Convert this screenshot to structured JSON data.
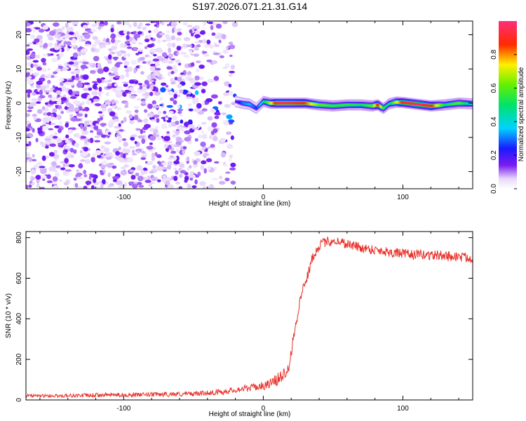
{
  "title": "S197.2026.071.21.31.G14",
  "colors": {
    "snr_line": "#e8312a",
    "scatter_low": "#e6d9fb",
    "scatter_mid": "#b58cf2",
    "scatter_high": "#6a11ea",
    "axis": "#000000"
  },
  "chart_data": [
    {
      "type": "heatmap",
      "xlabel": "Height of straight line (km)",
      "ylabel": "Frequency (Hz)",
      "xlim": [
        -170,
        150
      ],
      "ylim": [
        -25,
        24
      ],
      "xticks": [
        -100,
        0,
        100
      ],
      "xtick_labels": [
        "-100",
        "0",
        "100"
      ],
      "yticks": [
        -20,
        -10,
        0,
        10,
        20
      ],
      "ytick_labels": [
        "-20",
        "-10",
        "0",
        "10",
        "20"
      ],
      "colorbar": {
        "label": "Normalized spectral amplitude",
        "range": [
          0,
          1
        ],
        "ticks": [
          0.0,
          0.2,
          0.4,
          0.6,
          0.8
        ],
        "tick_labels": [
          "0.0",
          "0.2",
          "0.4",
          "0.6",
          "0.8"
        ],
        "colormap": "rainbow (white-violet-blue-cyan-green-yellow-red-magenta)"
      },
      "noise_region": {
        "x_range": [
          -170,
          -20
        ],
        "freq_range": [
          -25,
          24
        ]
      },
      "ridge": {
        "x": [
          -20,
          -15,
          -10,
          -5,
          0,
          5,
          10,
          20,
          30,
          40,
          50,
          60,
          70,
          78,
          82,
          86,
          90,
          95,
          100,
          110,
          120,
          130,
          140,
          150
        ],
        "freq": [
          0.5,
          0.0,
          -0.3,
          -1.5,
          0.5,
          0.0,
          0.0,
          0.0,
          0.0,
          -0.5,
          -0.8,
          -0.5,
          -0.5,
          -0.8,
          -0.5,
          -1.5,
          -0.2,
          0.3,
          0.2,
          -0.3,
          -0.8,
          -0.5,
          0.0,
          -0.2
        ],
        "amplitude": [
          0.15,
          0.3,
          0.35,
          0.25,
          0.45,
          0.7,
          0.95,
          0.95,
          0.85,
          0.6,
          0.55,
          0.55,
          0.5,
          0.6,
          0.9,
          0.55,
          0.45,
          0.7,
          0.9,
          0.95,
          0.9,
          0.5,
          0.6,
          0.4
        ]
      }
    },
    {
      "type": "line",
      "xlabel": "Height of straight line (km)",
      "ylabel": "SNR (10 * v/v)",
      "xlim": [
        -170,
        150
      ],
      "ylim": [
        0,
        830
      ],
      "xticks": [
        -100,
        0,
        100
      ],
      "xtick_labels": [
        "-100",
        "0",
        "100"
      ],
      "yticks": [
        0,
        200,
        400,
        600,
        800
      ],
      "ytick_labels": [
        "0",
        "200",
        "400",
        "600",
        "800"
      ],
      "series": [
        {
          "x": [
            -170,
            -150,
            -130,
            -110,
            -90,
            -70,
            -50,
            -40,
            -30,
            -20,
            -10,
            0,
            5,
            10,
            15,
            18,
            20,
            22,
            25,
            28,
            30,
            33,
            35,
            40,
            45,
            50,
            55,
            60,
            70,
            80,
            90,
            100,
            110,
            120,
            130,
            140,
            150
          ],
          "values": [
            20,
            20,
            22,
            25,
            25,
            28,
            30,
            35,
            40,
            50,
            60,
            70,
            80,
            100,
            130,
            170,
            230,
            330,
            440,
            540,
            580,
            640,
            700,
            760,
            780,
            785,
            780,
            770,
            750,
            740,
            730,
            720,
            715,
            715,
            710,
            705,
            700
          ],
          "noise": [
            8,
            8,
            10,
            10,
            10,
            12,
            12,
            12,
            14,
            15,
            18,
            20,
            25,
            30,
            35,
            40,
            40,
            35,
            30,
            25,
            25,
            25,
            25,
            25,
            25,
            25,
            25,
            25,
            25,
            25,
            25,
            25,
            25,
            25,
            25,
            25,
            25
          ]
        }
      ]
    }
  ]
}
